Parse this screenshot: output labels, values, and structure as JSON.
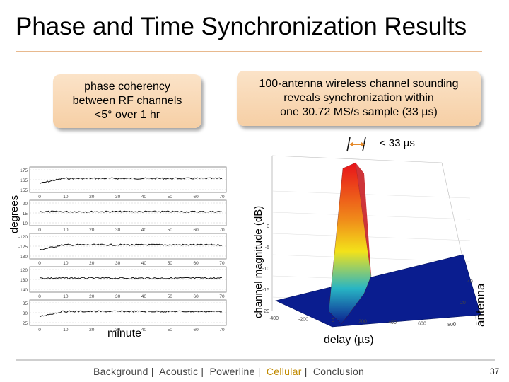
{
  "slide": {
    "title": "Phase and Time Synchronization Results",
    "page_number": "37"
  },
  "callouts": {
    "left": [
      "phase coherency",
      "between RF channels",
      "<5° over 1 hr"
    ],
    "right": [
      "100-antenna wireless channel sounding",
      "reveals synchronization within",
      "one 30.72 MS/s sample (33 µs)"
    ]
  },
  "phase_plot": {
    "y_label": "degrees",
    "x_label": "minute",
    "panels": [
      {
        "yticks": [
          "175",
          "165",
          "155"
        ]
      },
      {
        "yticks": [
          "20",
          "15",
          "10"
        ]
      },
      {
        "yticks": [
          "-120",
          "-125",
          "-130"
        ]
      },
      {
        "yticks": [
          "120",
          "130",
          "140"
        ]
      },
      {
        "yticks": [
          "35",
          "30",
          "25"
        ]
      }
    ],
    "xticks": [
      "0",
      "10",
      "20",
      "30",
      "40",
      "50",
      "60",
      "70"
    ]
  },
  "surface_plot": {
    "y_label": "channel magnitude (dB)",
    "x_label": "delay (µs)",
    "depth_label": "antenna",
    "annotation": "< 33 µs",
    "zticks": [
      "0",
      "-5",
      "-10",
      "-15",
      "-20"
    ],
    "xticks": [
      "-400",
      "-200",
      "0",
      "200",
      "400",
      "600",
      "800"
    ],
    "depth_ticks": [
      "40",
      "20",
      "0"
    ],
    "colors": {
      "floor": "#0a1d8f",
      "peak": "#e8121a",
      "mid": "#f3e21a",
      "teal": "#28b5c4"
    }
  },
  "footer": {
    "items": [
      "Background",
      "Acoustic",
      "Powerline",
      "Cellular",
      "Conclusion"
    ],
    "active": "Cellular"
  }
}
